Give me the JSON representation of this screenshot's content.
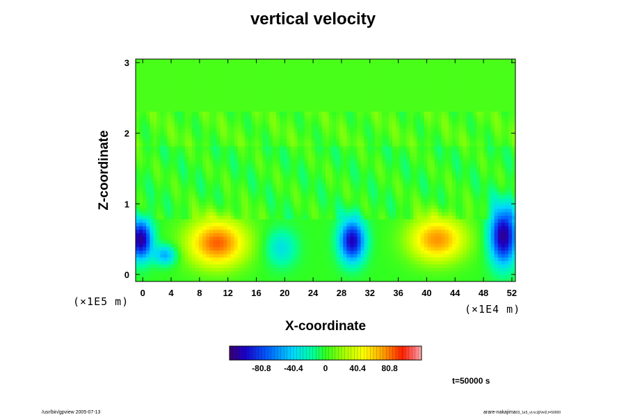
{
  "chart_data": {
    "type": "heatmap",
    "title": "vertical velocity",
    "xlabel": "X-coordinate",
    "ylabel": "Z-coordinate",
    "x_unit": "(×1E5 m)",
    "y_unit": "(×1E4 m)",
    "xlim": [
      -1,
      52.5
    ],
    "ylim": [
      -0.1,
      3.05
    ],
    "x_ticks": [
      "0",
      "4",
      "8",
      "12",
      "16",
      "20",
      "24",
      "28",
      "32",
      "36",
      "40",
      "44",
      "48",
      "52"
    ],
    "y_ticks": [
      "0",
      "1",
      "2",
      "3"
    ],
    "colorbar": {
      "range": [
        -121,
        121
      ],
      "ticks": [
        "-80.8",
        "-40.4",
        "0",
        "40.4",
        "80.8"
      ]
    },
    "anomalies": [
      {
        "x": -0.3,
        "z": 0.5,
        "rx": 1.6,
        "zr": 0.28,
        "value": -115
      },
      {
        "x": 3.2,
        "z": 0.28,
        "rx": 1.6,
        "zr": 0.14,
        "value": -55
      },
      {
        "x": 10.5,
        "z": 0.45,
        "rx": 4.2,
        "zr": 0.34,
        "value": 85
      },
      {
        "x": 19.5,
        "z": 0.38,
        "rx": 2.2,
        "zr": 0.26,
        "value": -35
      },
      {
        "x": 29.5,
        "z": 0.48,
        "rx": 1.8,
        "zr": 0.3,
        "value": -105
      },
      {
        "x": 41.5,
        "z": 0.5,
        "rx": 4.0,
        "zr": 0.32,
        "value": 75
      },
      {
        "x": 50.8,
        "z": 0.55,
        "rx": 1.9,
        "zr": 0.4,
        "value": -115
      }
    ]
  },
  "time_label": "t=50000 s",
  "footer": {
    "left": "/usr/bin/gpview 2005-07-13",
    "right_main": "arare-nakajima",
    "right_small": "03_1e5_vt.nc@Vel2,t=50000"
  }
}
